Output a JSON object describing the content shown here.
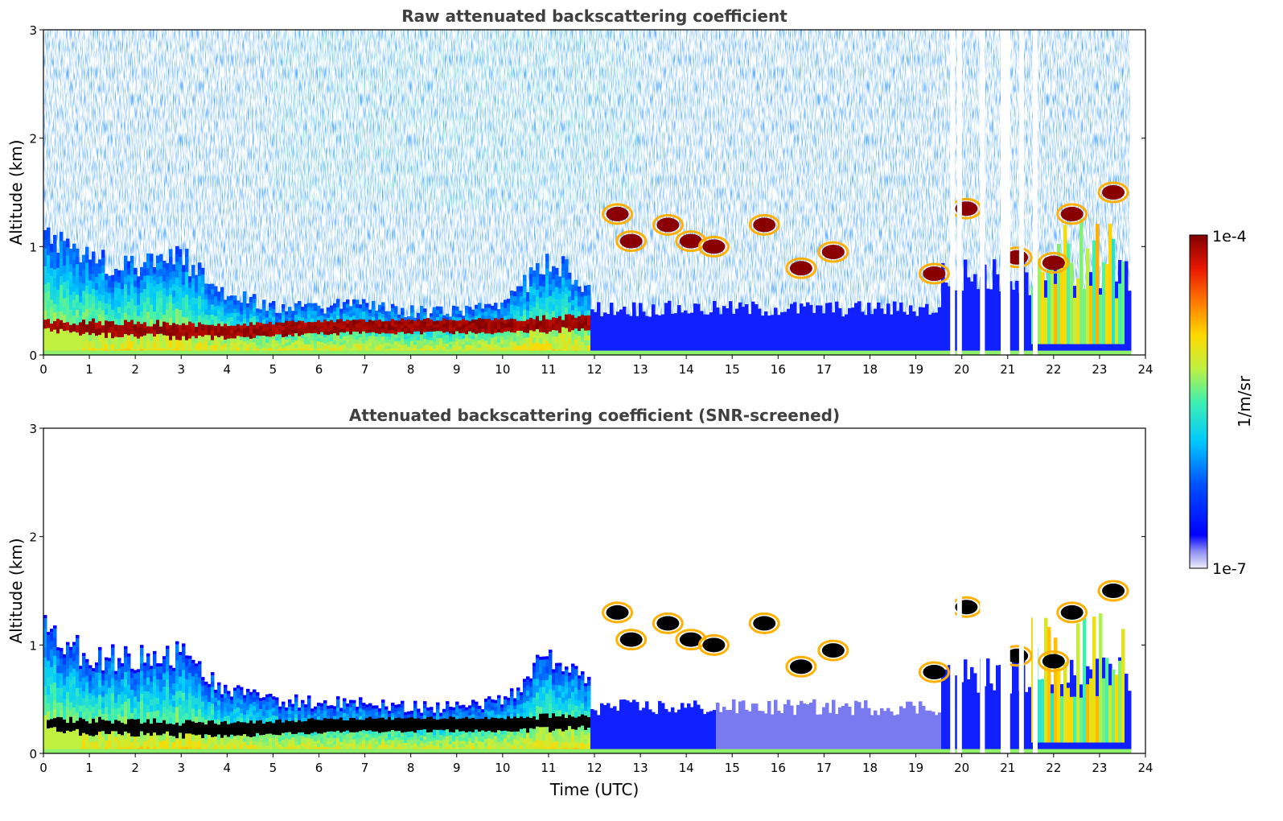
{
  "chart_data": [
    {
      "type": "heatmap",
      "title": "Raw attenuated backscattering coefficient",
      "xlabel": "",
      "ylabel": "Altitude (km)",
      "xlim": [
        0,
        24
      ],
      "ylim": [
        0,
        3
      ],
      "xticks": [
        0,
        1,
        2,
        3,
        4,
        5,
        6,
        7,
        8,
        9,
        10,
        11,
        12,
        13,
        14,
        15,
        16,
        17,
        18,
        19,
        20,
        21,
        22,
        23,
        24
      ],
      "yticks": [
        0,
        1,
        2,
        3
      ],
      "screened": false,
      "data_end_hour": 23.65,
      "missing_profiles_hours": [
        19.8,
        19.95,
        20.45,
        20.9,
        21.0,
        21.3,
        21.6
      ],
      "features": [
        {
          "kind": "aerosol-layer-top",
          "hours": [
            0,
            1,
            2,
            3,
            4,
            5,
            6,
            7,
            8,
            9,
            10,
            11,
            11.8
          ],
          "altitude_km": [
            1.1,
            0.85,
            0.85,
            0.9,
            0.55,
            0.45,
            0.45,
            0.45,
            0.4,
            0.4,
            0.45,
            0.9,
            0.6
          ]
        },
        {
          "kind": "strong-layer",
          "hours": [
            0.7,
            2,
            4,
            6,
            8,
            10,
            11.8
          ],
          "altitude_km": [
            0.25,
            0.24,
            0.22,
            0.26,
            0.27,
            0.27,
            0.3
          ]
        },
        {
          "kind": "cloud",
          "hours": [
            12.5,
            12.8,
            13.6,
            14.1,
            14.6,
            15.7,
            16.5,
            17.2,
            19.4,
            20.1,
            21.2,
            22,
            22.4,
            23.3
          ],
          "altitude_km": [
            1.3,
            1.05,
            1.2,
            1.05,
            1.0,
            1.2,
            0.8,
            0.95,
            0.75,
            1.35,
            0.9,
            0.85,
            1.3,
            1.5
          ]
        }
      ]
    },
    {
      "type": "heatmap",
      "title": "Attenuated backscattering coefficient (SNR-screened)",
      "xlabel": "Time (UTC)",
      "ylabel": "Altitude (km)",
      "xlim": [
        0,
        24
      ],
      "ylim": [
        0,
        3
      ],
      "xticks": [
        0,
        1,
        2,
        3,
        4,
        5,
        6,
        7,
        8,
        9,
        10,
        11,
        12,
        13,
        14,
        15,
        16,
        17,
        18,
        19,
        20,
        21,
        22,
        23,
        24
      ],
      "yticks": [
        0,
        1,
        2,
        3
      ],
      "screened": true,
      "data_end_hour": 23.65,
      "missing_profiles_hours": [
        19.8,
        19.95,
        20.45,
        20.9,
        21.0,
        21.3,
        21.6
      ]
    }
  ],
  "colorbar": {
    "label": "1/m/sr",
    "max_label": "1e-4",
    "min_label": "1e-7",
    "min_value": 1e-07,
    "max_value": 0.0001,
    "scale": "log",
    "colormap": "jet"
  }
}
